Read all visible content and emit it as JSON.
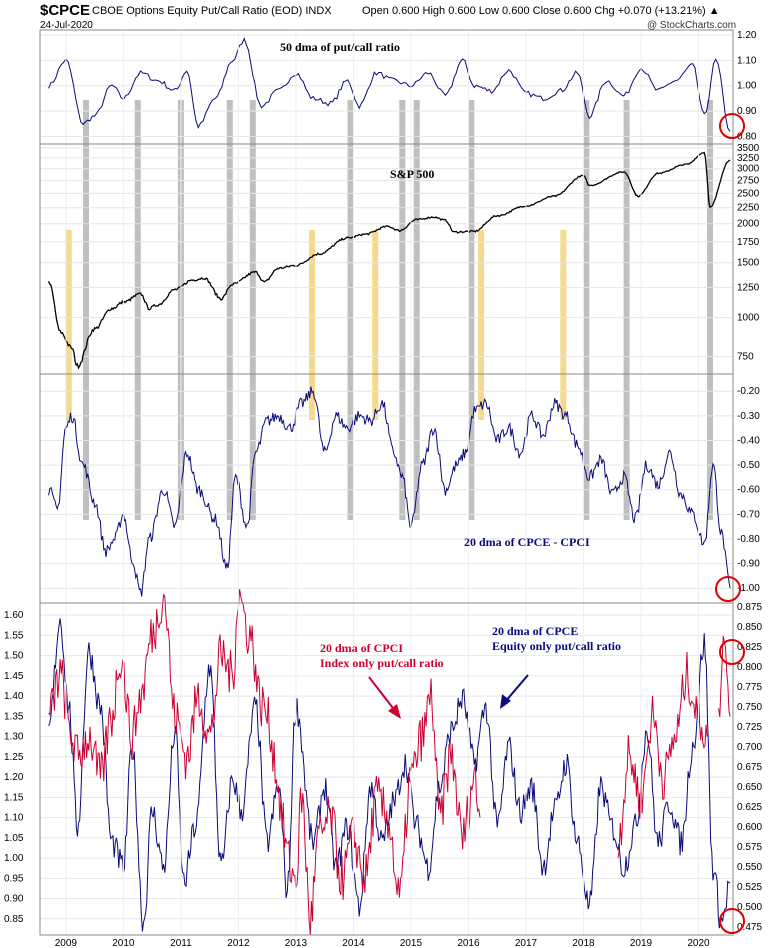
{
  "header": {
    "symbol": "$CPCE",
    "description": "CBOE Options Equity Put/Call Ratio (EOD)  INDX",
    "date": "24-Jul-2020",
    "ohlc": "Open 0.600  High 0.600  Low 0.600  Close 0.600  Chg +0.070 (+13.21%) ▲",
    "watermark": "@ StockCharts.com"
  },
  "colors": {
    "navy": "#0a0a7a",
    "red": "#cc0033",
    "black": "#000000",
    "gray_band": "#b4b4b4",
    "yellow_band": "#f5d98c",
    "circle": "#e00000"
  },
  "chart_data": [
    {
      "type": "line",
      "title": "50 dma of put/call ratio",
      "series": [
        {
          "name": "50 dma of put/call ratio",
          "color": "navy"
        }
      ],
      "ylim": [
        0.77,
        1.22
      ],
      "yticks": [
        "1.20",
        "1.10",
        "1.00",
        "0.90",
        "0.80"
      ],
      "x": [
        2008.7,
        2009.0,
        2009.3,
        2009.5,
        2009.8,
        2010.0,
        2010.3,
        2010.6,
        2010.9,
        2011.1,
        2011.3,
        2011.6,
        2011.9,
        2012.1,
        2012.4,
        2012.7,
        2013.0,
        2013.3,
        2013.6,
        2013.9,
        2014.1,
        2014.4,
        2014.7,
        2015.0,
        2015.3,
        2015.6,
        2015.9,
        2016.1,
        2016.4,
        2016.7,
        2017.0,
        2017.3,
        2017.6,
        2017.9,
        2018.1,
        2018.4,
        2018.7,
        2019.0,
        2019.3,
        2019.6,
        2019.9,
        2020.1,
        2020.3,
        2020.55
      ],
      "values": [
        1.0,
        1.1,
        0.85,
        0.88,
        1.0,
        0.95,
        1.05,
        1.02,
        0.98,
        1.06,
        0.84,
        0.95,
        1.1,
        1.18,
        0.92,
        0.98,
        1.05,
        0.95,
        0.93,
        1.02,
        0.92,
        1.05,
        1.02,
        1.0,
        1.05,
        0.96,
        1.1,
        1.0,
        0.98,
        1.06,
        0.97,
        0.95,
        0.98,
        1.05,
        0.88,
        1.02,
        0.96,
        1.07,
        0.98,
        1.02,
        1.08,
        0.88,
        1.1,
        0.82
      ]
    },
    {
      "type": "line",
      "title": "S&P 500",
      "series": [
        {
          "name": "S&P 500",
          "color": "black"
        }
      ],
      "scale": "log",
      "ylim": [
        660,
        3600
      ],
      "yticks": [
        "3500",
        "3250",
        "3000",
        "2750",
        "2500",
        "2250",
        "2000",
        "1750",
        "1500",
        "1250",
        "1000",
        "750"
      ],
      "x": [
        2008.7,
        2008.9,
        2009.1,
        2009.2,
        2009.5,
        2009.8,
        2010.0,
        2010.3,
        2010.45,
        2010.6,
        2010.9,
        2011.2,
        2011.4,
        2011.7,
        2011.9,
        2012.3,
        2012.45,
        2012.7,
        2013.0,
        2013.4,
        2013.9,
        2014.2,
        2014.6,
        2014.8,
        2015.1,
        2015.4,
        2015.6,
        2015.75,
        2016.1,
        2016.5,
        2017.0,
        2017.5,
        2018.0,
        2018.1,
        2018.7,
        2018.95,
        2019.3,
        2019.8,
        2020.1,
        2020.2,
        2020.55
      ],
      "values": [
        1300,
        900,
        800,
        700,
        920,
        1070,
        1120,
        1190,
        1070,
        1100,
        1230,
        1320,
        1340,
        1150,
        1280,
        1400,
        1300,
        1440,
        1470,
        1600,
        1800,
        1850,
        1960,
        1900,
        2060,
        2100,
        2050,
        1880,
        1890,
        2120,
        2280,
        2450,
        2850,
        2650,
        2930,
        2450,
        2900,
        3100,
        3380,
        2250,
        3200
      ]
    },
    {
      "type": "line",
      "title": "20 dma of CPCE - CPCI",
      "series": [
        {
          "name": "20 dma of CPCE - CPCI",
          "color": "navy"
        }
      ],
      "ylim": [
        -1.06,
        -0.13
      ],
      "yticks": [
        "-0.20",
        "-0.30",
        "-0.40",
        "-0.50",
        "-0.60",
        "-0.70",
        "-0.80",
        "-0.90",
        "-1.00"
      ],
      "x": [
        2008.7,
        2008.85,
        2009.0,
        2009.1,
        2009.3,
        2009.5,
        2009.7,
        2009.85,
        2010.0,
        2010.15,
        2010.3,
        2010.45,
        2010.7,
        2010.9,
        2011.1,
        2011.3,
        2011.6,
        2011.8,
        2011.95,
        2012.15,
        2012.3,
        2012.5,
        2012.7,
        2012.9,
        2013.1,
        2013.3,
        2013.5,
        2013.7,
        2013.9,
        2014.1,
        2014.3,
        2014.5,
        2014.7,
        2014.85,
        2015.0,
        2015.2,
        2015.4,
        2015.6,
        2015.8,
        2015.95,
        2016.1,
        2016.3,
        2016.5,
        2016.7,
        2016.9,
        2017.1,
        2017.3,
        2017.5,
        2017.7,
        2017.9,
        2018.1,
        2018.3,
        2018.5,
        2018.7,
        2018.9,
        2019.1,
        2019.3,
        2019.5,
        2019.7,
        2019.9,
        2020.1,
        2020.25,
        2020.4,
        2020.55
      ],
      "values": [
        -0.6,
        -0.68,
        -0.35,
        -0.3,
        -0.5,
        -0.65,
        -0.85,
        -0.8,
        -0.7,
        -0.88,
        -1.02,
        -0.8,
        -0.6,
        -0.75,
        -0.45,
        -0.6,
        -0.72,
        -0.92,
        -0.55,
        -0.75,
        -0.45,
        -0.32,
        -0.3,
        -0.35,
        -0.25,
        -0.2,
        -0.45,
        -0.3,
        -0.35,
        -0.3,
        -0.32,
        -0.25,
        -0.45,
        -0.55,
        -0.75,
        -0.5,
        -0.35,
        -0.6,
        -0.5,
        -0.45,
        -0.28,
        -0.25,
        -0.4,
        -0.35,
        -0.45,
        -0.3,
        -0.38,
        -0.25,
        -0.3,
        -0.42,
        -0.55,
        -0.48,
        -0.62,
        -0.55,
        -0.72,
        -0.5,
        -0.58,
        -0.45,
        -0.62,
        -0.7,
        -0.82,
        -0.5,
        -0.78,
        -1.0
      ]
    },
    {
      "type": "line",
      "title": "",
      "series": [
        {
          "name": "20 dma of CPCI Index only put/call ratio",
          "color": "red",
          "axis": "left",
          "x": [
            2008.7,
            2008.9,
            2009.1,
            2009.2,
            2009.4,
            2009.6,
            2009.8,
            2009.95,
            2010.15,
            2010.3,
            2010.5,
            2010.7,
            2010.9,
            2011.1,
            2011.3,
            2011.5,
            2011.7,
            2011.9,
            2012.0,
            2012.2,
            2012.4,
            2013.0,
            2013.1,
            2013.25,
            2013.4,
            2013.6,
            2013.8,
            2014.0,
            2014.2,
            2014.4,
            2014.6,
            2014.8,
            2015.0,
            2015.2,
            2015.35,
            2015.5,
            2015.7,
            2015.9,
            2016.1,
            2016.2
          ],
          "values": [
            1.35,
            1.45,
            1.3,
            1.25,
            1.3,
            1.2,
            1.35,
            1.5,
            1.3,
            1.4,
            1.55,
            1.65,
            1.35,
            1.25,
            1.4,
            1.3,
            1.5,
            1.45,
            1.65,
            1.55,
            1.38,
            0.95,
            1.15,
            0.85,
            1.05,
            1.1,
            0.95,
            1.05,
            0.95,
            1.15,
            1.1,
            0.9,
            1.2,
            1.3,
            1.4,
            1.1,
            1.25,
            1.05,
            1.2,
            1.1
          ]
        },
        {
          "name": "20 dma of CPCE Equity only put/call ratio",
          "color": "navy",
          "axis": "right",
          "x": [
            2008.7,
            2008.9,
            2009.05,
            2009.2,
            2009.4,
            2009.6,
            2009.8,
            2010.0,
            2010.15,
            2010.35,
            2010.5,
            2010.7,
            2010.9,
            2011.05,
            2011.25,
            2011.5,
            2011.7,
            2011.9,
            2012.05,
            2012.3,
            2012.5,
            2012.7,
            2012.85,
            2013.0,
            2013.3,
            2013.5,
            2013.7,
            2013.9,
            2014.1,
            2014.3,
            2014.5,
            2014.7,
            2014.9,
            2015.1,
            2015.3,
            2015.5,
            2015.7,
            2015.9,
            2016.1,
            2016.3,
            2016.5,
            2016.7,
            2016.9,
            2017.1,
            2017.3,
            2017.5,
            2017.7,
            2017.9,
            2018.1,
            2018.3,
            2018.5,
            2018.7,
            2018.9,
            2019.1,
            2019.3,
            2019.5,
            2019.7,
            2019.9,
            2020.1,
            2020.25,
            2020.4,
            2020.55
          ],
          "values": [
            0.72,
            0.86,
            0.75,
            0.6,
            0.82,
            0.75,
            0.58,
            0.55,
            0.7,
            0.48,
            0.62,
            0.55,
            0.72,
            0.53,
            0.6,
            0.8,
            0.55,
            0.66,
            0.62,
            0.75,
            0.58,
            0.65,
            0.52,
            0.75,
            0.58,
            0.65,
            0.55,
            0.6,
            0.5,
            0.65,
            0.58,
            0.63,
            0.68,
            0.6,
            0.55,
            0.65,
            0.72,
            0.76,
            0.68,
            0.75,
            0.6,
            0.7,
            0.62,
            0.65,
            0.55,
            0.62,
            0.68,
            0.58,
            0.5,
            0.65,
            0.6,
            0.55,
            0.6,
            0.72,
            0.58,
            0.63,
            0.58,
            0.7,
            0.83,
            0.55,
            0.48,
            0.53
          ]
        }
      ],
      "ylim_left": [
        0.81,
        1.63
      ],
      "ylim_right": [
        0.465,
        0.88
      ],
      "yticks_left": [
        "1.60",
        "1.55",
        "1.50",
        "1.45",
        "1.40",
        "1.35",
        "1.30",
        "1.25",
        "1.20",
        "1.15",
        "1.10",
        "1.05",
        "1.00",
        "0.95",
        "0.90",
        "0.85"
      ],
      "yticks_right": [
        "0.875",
        "0.850",
        "0.825",
        "0.800",
        "0.775",
        "0.750",
        "0.725",
        "0.700",
        "0.675",
        "0.650",
        "0.625",
        "0.600",
        "0.575",
        "0.550",
        "0.525",
        "0.500",
        "0.475"
      ],
      "xticks": [
        "2009",
        "2010",
        "2011",
        "2012",
        "2013",
        "2014",
        "2015",
        "2016",
        "2017",
        "2018",
        "2019",
        "2020"
      ]
    }
  ],
  "bands": {
    "gray": [
      2009.35,
      2010.25,
      2011.0,
      2011.85,
      2012.25,
      2013.95,
      2014.85,
      2015.1,
      2016.05,
      2018.05,
      2018.75,
      2020.2
    ],
    "yellow": [
      2009.05,
      2013.28,
      2014.38,
      2016.22,
      2017.65
    ]
  },
  "annotations": {
    "dma50": "50 dma of put/call ratio",
    "spx": "S&P 500",
    "diff": "20 dma of CPCE - CPCI",
    "cpci_line1": "20 dma of CPCI",
    "cpci_line2": "Index only put/call ratio",
    "cpce_line1": "20 dma of CPCE",
    "cpce_line2": "Equity only put/call ratio"
  }
}
